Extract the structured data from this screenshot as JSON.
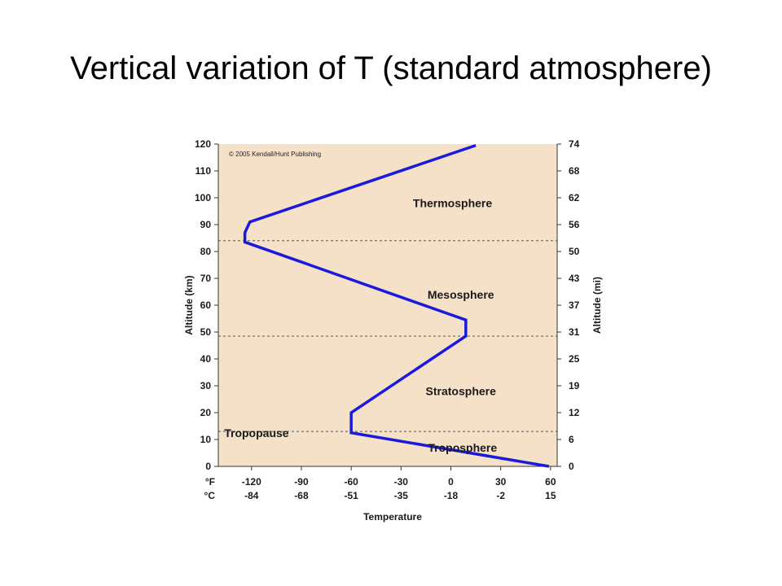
{
  "title": "Vertical variation of T (standard atmosphere)",
  "colors": {
    "plot_bg": "#f5e0c8",
    "line": "#1a1adc",
    "axis": "#333333",
    "boundary": "#555555"
  },
  "chart_data": {
    "type": "line",
    "copyright": "© 2005 Kendall/Hunt Publishing",
    "ylabel": "Altitude (km)",
    "y2label": "Altitude (mi)",
    "xlabel": "Temperature",
    "ylim": [
      0,
      120
    ],
    "xlim_f": [
      -140,
      64
    ],
    "yticks_km": [
      "0",
      "10",
      "20",
      "30",
      "40",
      "50",
      "60",
      "70",
      "80",
      "90",
      "100",
      "110",
      "120"
    ],
    "yticks_mi": [
      "0",
      "6",
      "12",
      "19",
      "25",
      "31",
      "37",
      "43",
      "50",
      "56",
      "62",
      "68",
      "74"
    ],
    "x_unit_f": "°F",
    "x_unit_c": "°C",
    "xticks_f": [
      "-120",
      "-90",
      "-60",
      "-30",
      "0",
      "30",
      "60"
    ],
    "xticks_c": [
      "-84",
      "-68",
      "-51",
      "-35",
      "-18",
      "-2",
      "15"
    ],
    "xtick_values_f": [
      -120,
      -90,
      -60,
      -30,
      0,
      30,
      60
    ],
    "series": [
      {
        "temp_f": [
          59,
          -60,
          -60,
          9,
          9,
          -124,
          -124,
          -121,
          15
        ],
        "alt_km": [
          0,
          12.5,
          20,
          48.5,
          54.5,
          83.5,
          87,
          91,
          119.5
        ]
      }
    ],
    "boundaries_km": [
      13,
      48.5,
      84
    ],
    "regions": [
      {
        "name": "Troposphere",
        "alt_km": 7,
        "temp_f": 7
      },
      {
        "name": "Tropopause",
        "alt_km": 12.5,
        "temp_f": -117
      },
      {
        "name": "Stratosphere",
        "alt_km": 28,
        "temp_f": 6
      },
      {
        "name": "Mesosphere",
        "alt_km": 64,
        "temp_f": 6
      },
      {
        "name": "Thermosphere",
        "alt_km": 98,
        "temp_f": 1
      }
    ]
  }
}
